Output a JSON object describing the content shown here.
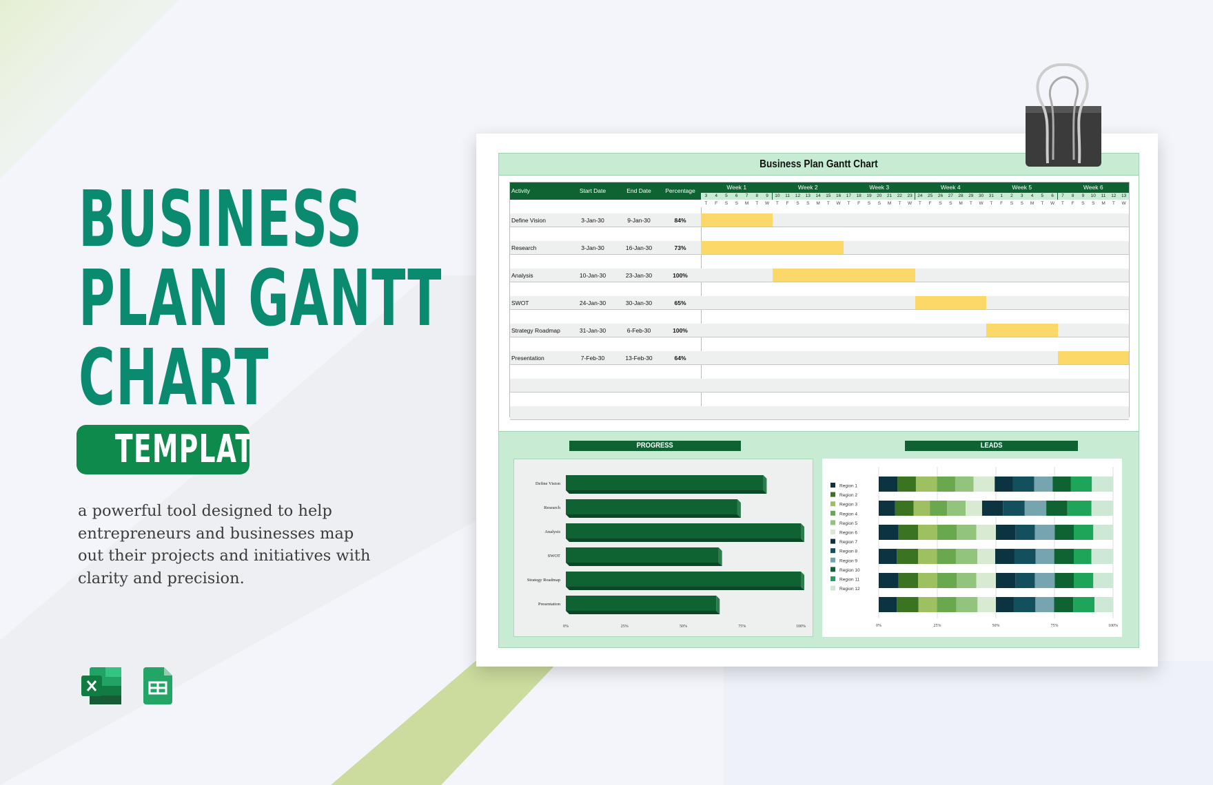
{
  "hero": {
    "title_lines": [
      "BUSINESS",
      "PLAN GANTT",
      "CHART"
    ],
    "badge": "TEMPLATE",
    "description": "a powerful tool designed to help entrepreneurs and businesses map out their projects and initiatives with clarity and precision.",
    "app_icons": [
      "microsoft-excel-icon",
      "google-sheets-icon"
    ]
  },
  "sheet": {
    "title": "Business Plan Gantt Chart",
    "columns": {
      "activity": "Activity",
      "start": "Start Date",
      "end": "End Date",
      "percentage": "Percentage"
    },
    "weeks": [
      "Week 1",
      "Week 2",
      "Week 3",
      "Week 4",
      "Week 5",
      "Week 6"
    ],
    "days": [
      "3",
      "4",
      "5",
      "6",
      "7",
      "8",
      "9",
      "10",
      "11",
      "12",
      "13",
      "14",
      "15",
      "16",
      "17",
      "18",
      "19",
      "20",
      "21",
      "22",
      "23",
      "24",
      "25",
      "26",
      "27",
      "28",
      "29",
      "30",
      "31",
      "1",
      "2",
      "3",
      "4",
      "5",
      "6",
      "7",
      "8",
      "9",
      "10",
      "11",
      "12",
      "13"
    ],
    "weekdays": [
      "T",
      "F",
      "S",
      "S",
      "M",
      "T",
      "W",
      "T",
      "F",
      "S",
      "S",
      "M",
      "T",
      "W",
      "T",
      "F",
      "S",
      "S",
      "M",
      "T",
      "W",
      "T",
      "F",
      "S",
      "S",
      "M",
      "T",
      "W",
      "T",
      "F",
      "S",
      "S",
      "M",
      "T",
      "W",
      "T",
      "F",
      "S",
      "S",
      "M",
      "T",
      "W"
    ],
    "tasks": [
      {
        "activity": "Define Vision",
        "start": "3-Jan-30",
        "end": "9-Jan-30",
        "percentage": "84%"
      },
      {
        "activity": "Research",
        "start": "3-Jan-30",
        "end": "16-Jan-30",
        "percentage": "73%"
      },
      {
        "activity": "Analysis",
        "start": "10-Jan-30",
        "end": "23-Jan-30",
        "percentage": "100%"
      },
      {
        "activity": "SWOT",
        "start": "24-Jan-30",
        "end": "30-Jan-30",
        "percentage": "65%"
      },
      {
        "activity": "Strategy Roadmap",
        "start": "31-Jan-30",
        "end": "6-Feb-30",
        "percentage": "100%"
      },
      {
        "activity": "Presentation",
        "start": "7-Feb-30",
        "end": "13-Feb-30",
        "percentage": "64%"
      }
    ],
    "bar_color": "#fcd869",
    "header_color": "#0f6333"
  },
  "chart_data": [
    {
      "type": "bar",
      "orientation": "horizontal",
      "title": "PROGRESS",
      "categories": [
        "Define Vision",
        "Research",
        "Analysis",
        "SWOT",
        "Strategy Roadmap",
        "Presentation"
      ],
      "values": [
        84,
        73,
        100,
        65,
        100,
        64
      ],
      "xlim": [
        0,
        100
      ],
      "tick_labels": [
        "0%",
        "25%",
        "50%",
        "75%",
        "100%"
      ],
      "color": "#0f6333"
    },
    {
      "type": "bar",
      "orientation": "horizontal",
      "stacked": "100%",
      "title": "LEADS",
      "legend": "left",
      "grid": true,
      "tick_labels": [
        "0%",
        "25%",
        "50%",
        "75%",
        "100%"
      ],
      "series": [
        {
          "name": "Region 1",
          "color": "#0b3340",
          "values": [
            8.0,
            7.0,
            8.4,
            7.7,
            8.4,
            7.7
          ]
        },
        {
          "name": "Region 2",
          "color": "#3a7420",
          "values": [
            7.8,
            7.9,
            8.3,
            9.0,
            8.3,
            9.2
          ]
        },
        {
          "name": "Region 3",
          "color": "#9fc060",
          "values": [
            8.9,
            6.9,
            8.2,
            8.0,
            8.2,
            7.8
          ]
        },
        {
          "name": "Region 4",
          "color": "#6aa84f",
          "values": [
            7.8,
            7.4,
            8.3,
            8.1,
            8.3,
            8.3
          ]
        },
        {
          "name": "Region 5",
          "color": "#93c47d",
          "values": [
            7.8,
            7.9,
            8.3,
            9.1,
            8.3,
            9.0
          ]
        },
        {
          "name": "Region 6",
          "color": "#d9ead3",
          "values": [
            9.0,
            7.0,
            8.3,
            7.6,
            8.3,
            7.8
          ]
        },
        {
          "name": "Region 7",
          "color": "#0b3340",
          "values": [
            7.8,
            8.9,
            8.3,
            8.2,
            8.3,
            7.6
          ]
        },
        {
          "name": "Region 8",
          "color": "#134f5c",
          "values": [
            9.0,
            9.3,
            8.3,
            9.0,
            8.3,
            9.2
          ]
        },
        {
          "name": "Region 9",
          "color": "#76a5af",
          "values": [
            7.8,
            9.2,
            8.4,
            7.9,
            8.4,
            7.9
          ]
        },
        {
          "name": "Region 10",
          "color": "#0f6333",
          "values": [
            7.8,
            9.0,
            8.1,
            8.3,
            8.1,
            8.2
          ]
        },
        {
          "name": "Region 11",
          "color": "#1fa55a",
          "values": [
            8.9,
            10.3,
            8.3,
            7.5,
            8.3,
            9.0
          ]
        },
        {
          "name": "Region 12",
          "color": "#cde9d6",
          "values": [
            9.0,
            9.2,
            8.4,
            9.2,
            8.4,
            7.9
          ]
        }
      ]
    }
  ]
}
